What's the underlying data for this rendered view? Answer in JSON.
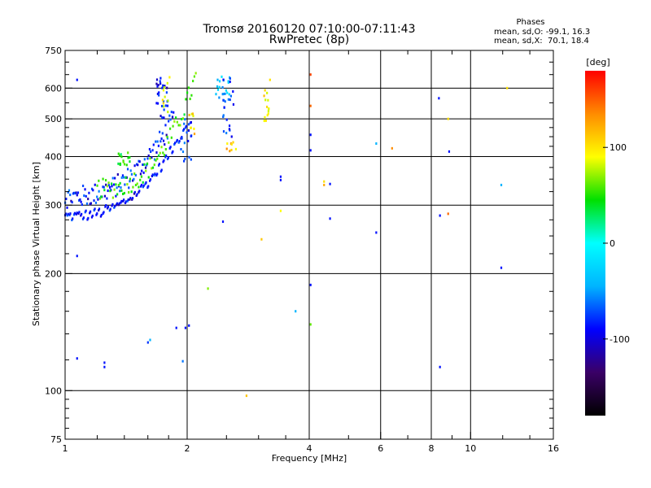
{
  "chart_data": {
    "type": "scatter",
    "title": "Tromsø 20160120 07:10:00-07:11:43",
    "subtitle": "RwPretec (8p)",
    "xlabel": "Frequency [MHz]",
    "ylabel": "Stationary phase Virtual Height [km]",
    "x_scale": "log",
    "y_scale": "log",
    "xlim": [
      1,
      16
    ],
    "ylim": [
      75,
      750
    ],
    "x_ticks": [
      1,
      2,
      4,
      6,
      8,
      10,
      16
    ],
    "y_ticks": [
      75,
      100,
      200,
      300,
      400,
      500,
      600,
      750
    ],
    "x_grid": [
      2,
      4,
      6,
      8,
      10
    ],
    "y_grid": [
      100,
      200,
      300,
      400,
      500,
      600
    ],
    "grid": true,
    "stats": {
      "header": "Phases",
      "line_o": "mean, sd,O: -99.1, 16.3",
      "line_x": "mean, sd,X:  70.1, 18.4"
    },
    "colorbar": {
      "label": "[deg]",
      "range": [
        -180,
        180
      ],
      "ticks": [
        100,
        0,
        -100
      ],
      "colors": [
        "#000000",
        "#3a0066",
        "#0000ff",
        "#00b4ff",
        "#00ffff",
        "#00e000",
        "#ffff00",
        "#ff8c00",
        "#ff0000"
      ]
    },
    "series": [
      {
        "trace": "O-trace (lower)",
        "start": [
          1.0,
          280
        ],
        "end": [
          1.98,
          480
        ],
        "n": 55,
        "phase": -110,
        "spread": 0.06,
        "thick": 1
      },
      {
        "trace": "O-trace (upper scatter)",
        "start": [
          1.0,
          315
        ],
        "end": [
          1.85,
          500
        ],
        "n": 110,
        "phase": -105,
        "spread": 0.13,
        "thick": 0
      },
      {
        "trace": "X-trace",
        "start": [
          1.2,
          330
        ],
        "end": [
          2.1,
          640
        ],
        "n": 70,
        "phase": 40,
        "spread": 0.12,
        "thick": 0
      }
    ],
    "clusters": [
      {
        "x": [
          1.68,
          1.8
        ],
        "y": [
          500,
          640
        ],
        "n": 28,
        "phase": -110
      },
      {
        "x": [
          1.72,
          1.82
        ],
        "y": [
          520,
          640
        ],
        "n": 10,
        "phase": 90
      },
      {
        "x": [
          1.9,
          2.05
        ],
        "y": [
          380,
          500
        ],
        "n": 18,
        "phase": -100
      },
      {
        "x": [
          2.0,
          2.1
        ],
        "y": [
          450,
          520
        ],
        "n": 8,
        "phase": 110
      },
      {
        "x": [
          2.35,
          2.55
        ],
        "y": [
          560,
          650
        ],
        "n": 20,
        "phase": -50
      },
      {
        "x": [
          2.45,
          2.62
        ],
        "y": [
          450,
          650
        ],
        "n": 22,
        "phase": -95
      },
      {
        "x": [
          2.5,
          2.65
        ],
        "y": [
          410,
          440
        ],
        "n": 8,
        "phase": 120
      },
      {
        "x": [
          3.08,
          3.18
        ],
        "y": [
          490,
          600
        ],
        "n": 14,
        "phase": 100
      },
      {
        "x": [
          1.35,
          1.45
        ],
        "y": [
          380,
          410
        ],
        "n": 16,
        "phase": 25
      }
    ],
    "points": [
      {
        "x": 1.07,
        "y": 630,
        "phase": -110
      },
      {
        "x": 1.07,
        "y": 222,
        "phase": -110
      },
      {
        "x": 1.07,
        "y": 121,
        "phase": -110
      },
      {
        "x": 1.25,
        "y": 118,
        "phase": -110
      },
      {
        "x": 1.25,
        "y": 115,
        "phase": -110
      },
      {
        "x": 1.62,
        "y": 135,
        "phase": -60
      },
      {
        "x": 1.6,
        "y": 133,
        "phase": -100
      },
      {
        "x": 1.95,
        "y": 119,
        "phase": -80
      },
      {
        "x": 1.88,
        "y": 145,
        "phase": -110
      },
      {
        "x": 1.98,
        "y": 145,
        "phase": -110
      },
      {
        "x": 2.02,
        "y": 147,
        "phase": -110
      },
      {
        "x": 2.25,
        "y": 183,
        "phase": 60
      },
      {
        "x": 2.45,
        "y": 272,
        "phase": -110
      },
      {
        "x": 2.8,
        "y": 97,
        "phase": 120
      },
      {
        "x": 3.05,
        "y": 245,
        "phase": 120
      },
      {
        "x": 3.2,
        "y": 630,
        "phase": 110
      },
      {
        "x": 3.4,
        "y": 355,
        "phase": -110
      },
      {
        "x": 3.4,
        "y": 348,
        "phase": -110
      },
      {
        "x": 3.4,
        "y": 290,
        "phase": 100
      },
      {
        "x": 3.7,
        "y": 160,
        "phase": -60
      },
      {
        "x": 4.03,
        "y": 650,
        "phase": 160
      },
      {
        "x": 4.03,
        "y": 540,
        "phase": 150
      },
      {
        "x": 4.03,
        "y": 455,
        "phase": -110
      },
      {
        "x": 4.03,
        "y": 415,
        "phase": -110
      },
      {
        "x": 4.03,
        "y": 187,
        "phase": -110
      },
      {
        "x": 4.03,
        "y": 148,
        "phase": 50
      },
      {
        "x": 4.35,
        "y": 345,
        "phase": 110
      },
      {
        "x": 4.35,
        "y": 338,
        "phase": 130
      },
      {
        "x": 4.5,
        "y": 340,
        "phase": -110
      },
      {
        "x": 4.5,
        "y": 277,
        "phase": -110
      },
      {
        "x": 5.85,
        "y": 432,
        "phase": -60
      },
      {
        "x": 5.85,
        "y": 255,
        "phase": -110
      },
      {
        "x": 6.4,
        "y": 420,
        "phase": 140
      },
      {
        "x": 8.35,
        "y": 565,
        "phase": -110
      },
      {
        "x": 8.4,
        "y": 282,
        "phase": -110
      },
      {
        "x": 8.4,
        "y": 115,
        "phase": -110
      },
      {
        "x": 8.8,
        "y": 500,
        "phase": 110
      },
      {
        "x": 8.8,
        "y": 285,
        "phase": 150
      },
      {
        "x": 8.85,
        "y": 412,
        "phase": -110
      },
      {
        "x": 11.9,
        "y": 338,
        "phase": -60
      },
      {
        "x": 11.9,
        "y": 207,
        "phase": -110
      },
      {
        "x": 12.3,
        "y": 600,
        "phase": 110
      }
    ]
  }
}
